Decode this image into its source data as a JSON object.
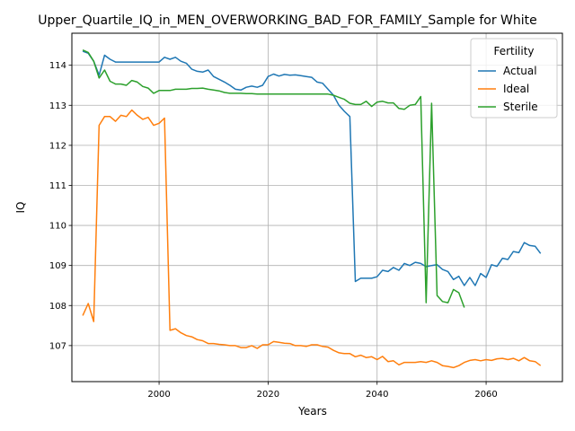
{
  "chart_data": {
    "type": "line",
    "title": "Upper_Quartile_IQ_in_MEN_OVERWORKING_BAD_FOR_FAMILY_Sample for White",
    "xlabel": "Years",
    "ylabel": "IQ",
    "xlim": [
      1984,
      2074
    ],
    "ylim": [
      106.1,
      114.8
    ],
    "xticks": [
      2000,
      2020,
      2040,
      2060
    ],
    "yticks": [
      107,
      108,
      109,
      110,
      111,
      112,
      113,
      114
    ],
    "grid": true,
    "legend": {
      "title": "Fertility",
      "position": "upper right"
    },
    "series": [
      {
        "name": "Actual",
        "color": "#1f77b4",
        "x": [
          1986,
          1987,
          1988,
          1989,
          1990,
          1991,
          1992,
          1993,
          1994,
          1995,
          1996,
          1997,
          1998,
          1999,
          2000,
          2001,
          2002,
          2003,
          2004,
          2005,
          2006,
          2007,
          2008,
          2009,
          2010,
          2011,
          2012,
          2013,
          2014,
          2015,
          2016,
          2017,
          2018,
          2019,
          2020,
          2021,
          2022,
          2023,
          2024,
          2025,
          2026,
          2027,
          2028,
          2029,
          2030,
          2031,
          2032,
          2033,
          2034,
          2035,
          2036,
          2037,
          2038,
          2039,
          2040,
          2041,
          2042,
          2043,
          2044,
          2045,
          2046,
          2047,
          2048,
          2049,
          2050,
          2051,
          2052,
          2053,
          2054,
          2055,
          2056,
          2057,
          2058,
          2059,
          2060,
          2061,
          2062,
          2063,
          2064,
          2065,
          2066,
          2067,
          2068,
          2069,
          2070
        ],
        "y": [
          114.35,
          114.3,
          114.1,
          113.75,
          114.25,
          114.15,
          114.08,
          114.08,
          114.08,
          114.08,
          114.08,
          114.08,
          114.08,
          114.08,
          114.08,
          114.2,
          114.15,
          114.2,
          114.1,
          114.05,
          113.9,
          113.85,
          113.83,
          113.88,
          113.72,
          113.65,
          113.58,
          113.5,
          113.4,
          113.38,
          113.45,
          113.48,
          113.45,
          113.5,
          113.72,
          113.78,
          113.73,
          113.77,
          113.75,
          113.76,
          113.74,
          113.72,
          113.7,
          113.58,
          113.55,
          113.4,
          113.25,
          113.0,
          112.85,
          112.72,
          108.6,
          108.68,
          108.68,
          108.68,
          108.72,
          108.88,
          108.85,
          108.95,
          108.88,
          109.05,
          109.0,
          109.08,
          109.05,
          108.97,
          109.0,
          109.02,
          108.9,
          108.85,
          108.65,
          108.73,
          108.5,
          108.7,
          108.5,
          108.8,
          108.7,
          109.02,
          108.98,
          109.18,
          109.15,
          109.35,
          109.32,
          109.57,
          109.5,
          109.48,
          109.3
        ]
      },
      {
        "name": "Ideal",
        "color": "#ff7f0e",
        "x": [
          1986,
          1987,
          1988,
          1989,
          1990,
          1991,
          1992,
          1993,
          1994,
          1995,
          1996,
          1997,
          1998,
          1999,
          2000,
          2001,
          2002,
          2003,
          2004,
          2005,
          2006,
          2007,
          2008,
          2009,
          2010,
          2011,
          2012,
          2013,
          2014,
          2015,
          2016,
          2017,
          2018,
          2019,
          2020,
          2021,
          2022,
          2023,
          2024,
          2025,
          2026,
          2027,
          2028,
          2029,
          2030,
          2031,
          2032,
          2033,
          2034,
          2035,
          2036,
          2037,
          2038,
          2039,
          2040,
          2041,
          2042,
          2043,
          2044,
          2045,
          2046,
          2047,
          2048,
          2049,
          2050,
          2051,
          2052,
          2053,
          2054,
          2055,
          2056,
          2057,
          2058,
          2059,
          2060,
          2061,
          2062,
          2063,
          2064,
          2065,
          2066,
          2067,
          2068,
          2069,
          2070
        ],
        "y": [
          107.75,
          108.05,
          107.6,
          112.5,
          112.72,
          112.72,
          112.6,
          112.75,
          112.72,
          112.88,
          112.75,
          112.65,
          112.7,
          112.5,
          112.55,
          112.68,
          107.38,
          107.42,
          107.32,
          107.25,
          107.22,
          107.15,
          107.12,
          107.05,
          107.05,
          107.03,
          107.02,
          107.0,
          107.0,
          106.95,
          106.95,
          107.0,
          106.93,
          107.02,
          107.02,
          107.1,
          107.08,
          107.06,
          107.05,
          107.0,
          107.0,
          106.98,
          107.02,
          107.02,
          106.98,
          106.96,
          106.88,
          106.82,
          106.8,
          106.8,
          106.72,
          106.76,
          106.7,
          106.72,
          106.65,
          106.73,
          106.6,
          106.62,
          106.52,
          106.58,
          106.58,
          106.58,
          106.6,
          106.58,
          106.62,
          106.58,
          106.5,
          106.48,
          106.45,
          106.5,
          106.58,
          106.63,
          106.65,
          106.62,
          106.65,
          106.63,
          106.67,
          106.68,
          106.65,
          106.68,
          106.62,
          106.7,
          106.62,
          106.6,
          106.5
        ]
      },
      {
        "name": "Sterile",
        "color": "#2ca02c",
        "x": [
          1986,
          1987,
          1988,
          1989,
          1990,
          1991,
          1992,
          1993,
          1994,
          1995,
          1996,
          1997,
          1998,
          1999,
          2000,
          2001,
          2002,
          2003,
          2004,
          2005,
          2006,
          2007,
          2008,
          2009,
          2010,
          2011,
          2012,
          2013,
          2014,
          2015,
          2016,
          2017,
          2018,
          2019,
          2020,
          2021,
          2022,
          2023,
          2024,
          2025,
          2026,
          2027,
          2028,
          2029,
          2030,
          2031,
          2032,
          2033,
          2034,
          2035,
          2036,
          2037,
          2038,
          2039,
          2040,
          2041,
          2042,
          2043,
          2044,
          2045,
          2046,
          2047,
          2048,
          2049,
          2050,
          2051,
          2052,
          2053,
          2054,
          2055,
          2056
        ],
        "y": [
          114.38,
          114.32,
          114.1,
          113.68,
          113.88,
          113.6,
          113.53,
          113.53,
          113.5,
          113.62,
          113.58,
          113.47,
          113.43,
          113.3,
          113.37,
          113.37,
          113.37,
          113.4,
          113.4,
          113.4,
          113.42,
          113.42,
          113.43,
          113.4,
          113.38,
          113.36,
          113.32,
          113.3,
          113.3,
          113.3,
          113.29,
          113.29,
          113.28,
          113.28,
          113.28,
          113.28,
          113.28,
          113.28,
          113.28,
          113.28,
          113.28,
          113.28,
          113.28,
          113.28,
          113.28,
          113.28,
          113.25,
          113.2,
          113.15,
          113.05,
          113.02,
          113.02,
          113.1,
          112.97,
          113.08,
          113.1,
          113.06,
          113.06,
          112.92,
          112.9,
          113.0,
          113.02,
          113.22,
          108.07,
          113.05,
          108.25,
          108.1,
          108.07,
          108.4,
          108.32,
          107.95
        ]
      }
    ]
  }
}
